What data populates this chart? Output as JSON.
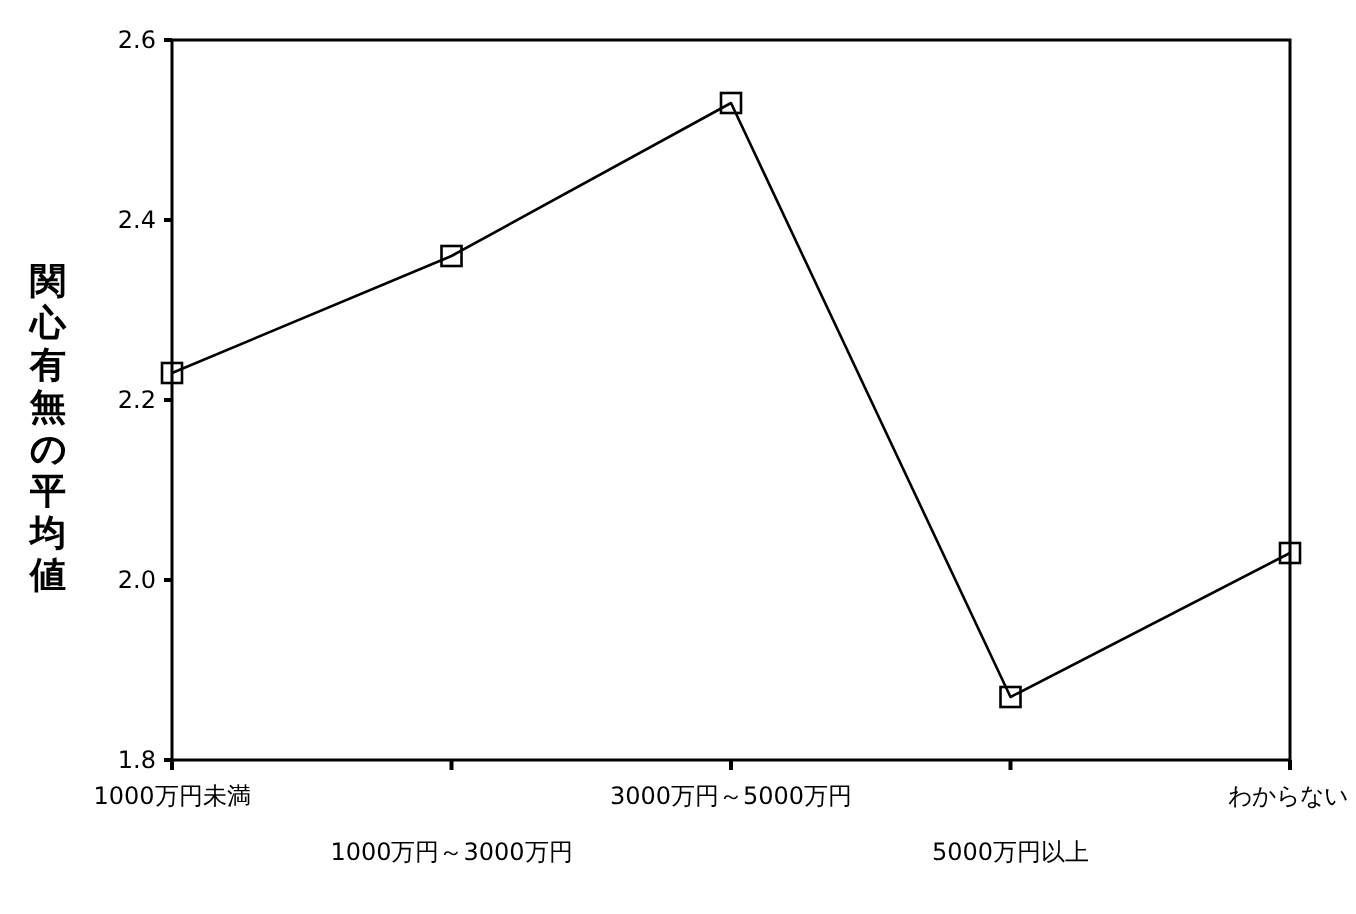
{
  "chart_data": {
    "type": "line",
    "ylabel": "関心有無の平均値",
    "categories": [
      "1000万円未満",
      "1000万円～3000万円",
      "3000万円～5000万円",
      "5000万円以上",
      "わからない"
    ],
    "values": [
      2.23,
      2.36,
      2.53,
      1.87,
      2.03
    ],
    "color": "#000000",
    "marker": "square",
    "line_style": "solid",
    "grid": false,
    "ylim": [
      1.8,
      2.6
    ],
    "yticks": [
      {
        "value": 1.8,
        "label": "1.8"
      },
      {
        "value": 2.0,
        "label": "2.0"
      },
      {
        "value": 2.2,
        "label": "2.2"
      },
      {
        "value": 2.4,
        "label": "2.4"
      },
      {
        "value": 2.6,
        "label": "2.6"
      }
    ]
  }
}
